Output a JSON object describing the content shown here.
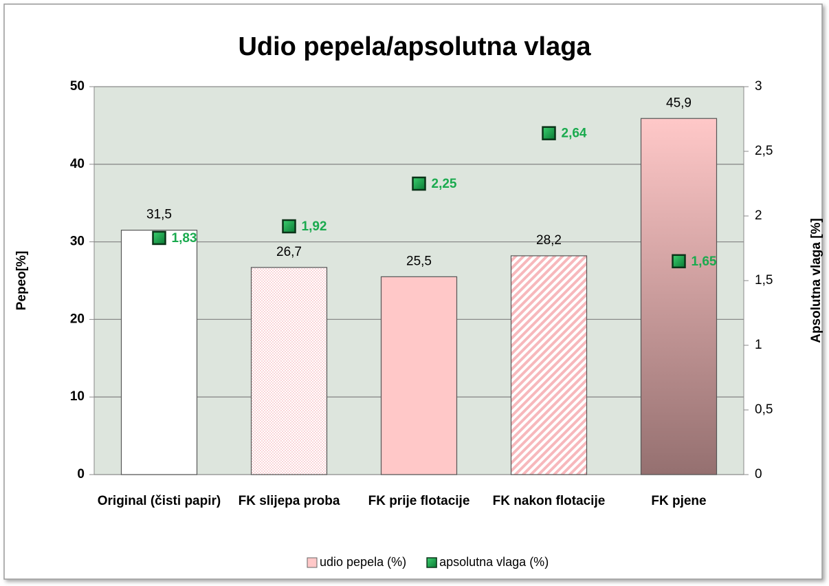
{
  "chart_data": {
    "type": "bar",
    "title": "Udio pepela/apsolutna vlaga",
    "ylabel": "Pepeo[%]",
    "y2label": "Apsolutna vlaga [%]",
    "categories": [
      "Original (čisti papir)",
      "FK slijepa proba",
      "FK prije flotacije",
      "FK nakon flotacije",
      "FK pjene"
    ],
    "series": [
      {
        "name": "udio pepela (%)",
        "type": "bar",
        "color": "#ffc8c8",
        "colors": [
          "#ffffff",
          "#f7b8bc",
          "#ffc8c8",
          "#f7b8bc",
          "#ffc8c8"
        ],
        "fill_styles": [
          "solid",
          "dots",
          "solid",
          "stripes",
          "gradient"
        ],
        "gradient_to": "#957070",
        "values": [
          31.5,
          26.7,
          25.5,
          28.2,
          45.9
        ],
        "value_labels": [
          "31,5",
          "26,7",
          "25,5",
          "28,2",
          "45,9"
        ]
      },
      {
        "name": "apsolutna vlaga (%)",
        "type": "scatter",
        "axis": "y2",
        "color": "#12a84a",
        "label_color": "#1aaa4e",
        "values": [
          1.83,
          1.92,
          2.25,
          2.64,
          1.65
        ],
        "value_labels": [
          "1,83",
          "1,92",
          "2,25",
          "2,64",
          "1,65"
        ]
      }
    ],
    "ylim": [
      0,
      50
    ],
    "yticks": [
      0,
      10,
      20,
      30,
      40,
      50
    ],
    "y2lim": [
      0,
      3
    ],
    "y2ticks": [
      0,
      {
        "value": 0.5,
        "label": "0,5"
      },
      1,
      {
        "value": 1.5,
        "label": "1,5"
      },
      2,
      {
        "value": 2.5,
        "label": "2,5"
      },
      3
    ],
    "grid": true,
    "legend": "bottom"
  }
}
